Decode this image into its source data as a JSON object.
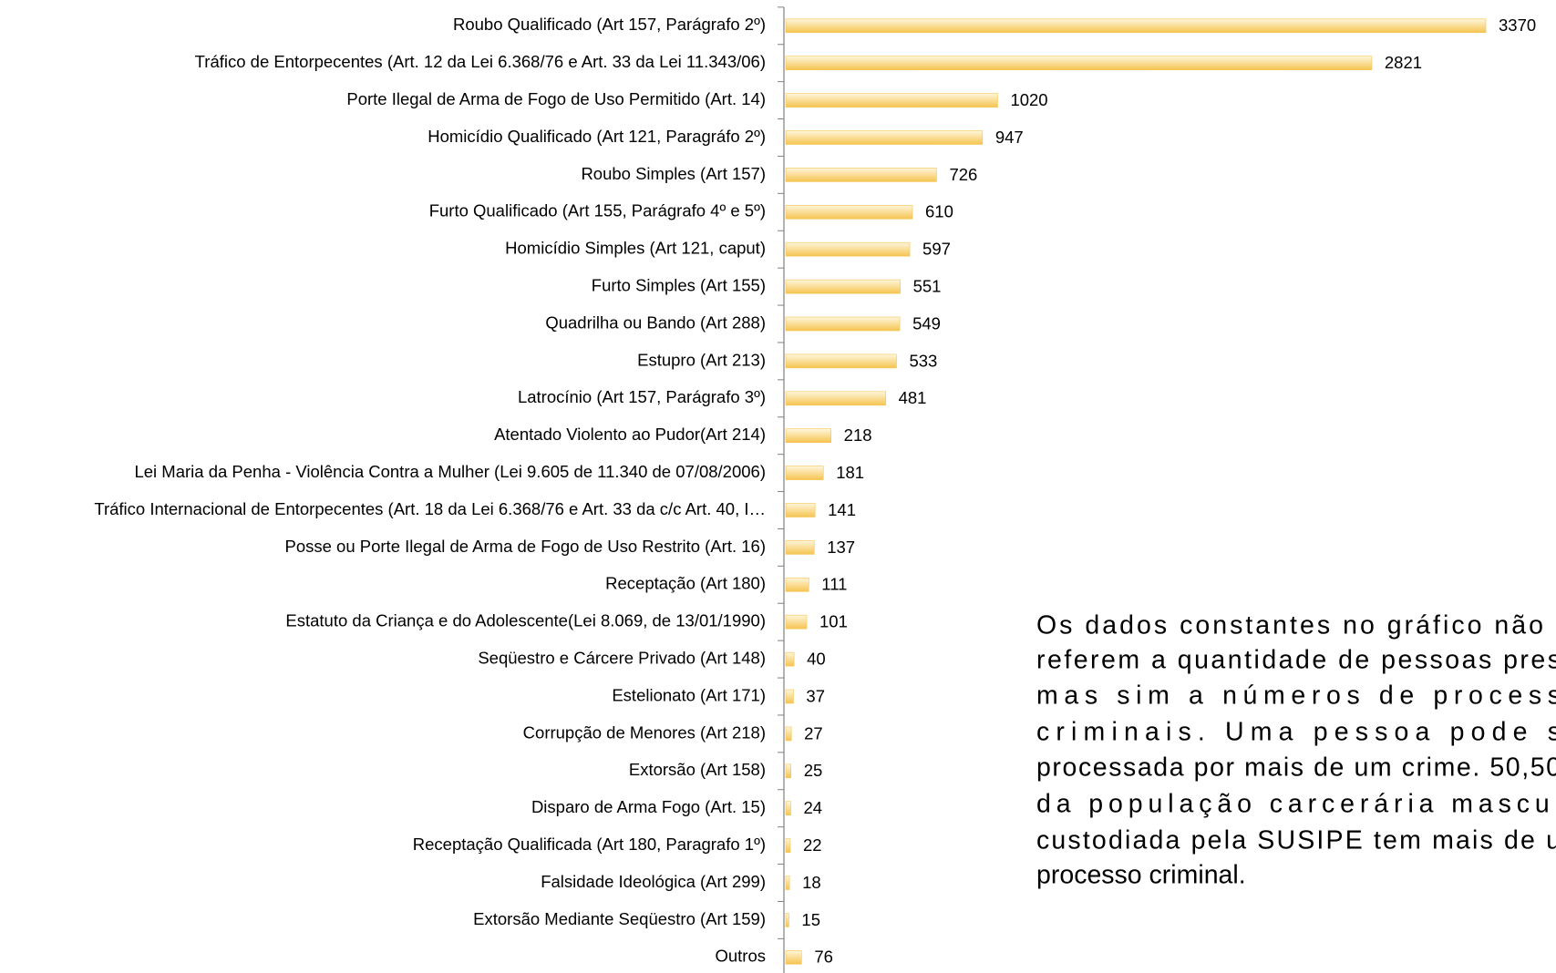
{
  "chart_data": {
    "type": "bar",
    "orientation": "horizontal",
    "categories": [
      "Roubo Qualificado (Art 157, Parágrafo 2º)",
      "Tráfico de Entorpecentes (Art. 12 da Lei 6.368/76 e Art. 33 da Lei 11.343/06)",
      "Porte Ilegal de Arma de Fogo de Uso Permitido (Art. 14)",
      "Homicídio Qualificado (Art 121, Paragráfo 2º)",
      "Roubo Simples (Art 157)",
      "Furto Qualificado (Art 155, Parágrafo 4º e 5º)",
      "Homicídio Simples (Art 121, caput)",
      "Furto Simples (Art 155)",
      "Quadrilha ou Bando (Art 288)",
      "Estupro (Art 213)",
      "Latrocínio (Art 157, Parágrafo 3º)",
      "Atentado Violento ao Pudor(Art 214)",
      "Lei Maria da Penha - Violência Contra a Mulher (Lei 9.605 de 11.340 de 07/08/2006)",
      "Tráfico Internacional de Entorpecentes (Art. 18 da Lei 6.368/76 e Art. 33 da c/c Art. 40, I…",
      "Posse ou Porte Ilegal de Arma de Fogo de Uso Restrito (Art. 16)",
      "Receptação (Art 180)",
      "Estatuto da Criança e do Adolescente(Lei 8.069, de 13/01/1990)",
      "Seqüestro e Cárcere Privado (Art 148)",
      "Estelionato (Art 171)",
      "Corrupção de Menores (Art 218)",
      "Extorsão (Art 158)",
      "Disparo de Arma Fogo (Art. 15)",
      "Receptação Qualificada (Art 180, Paragrafo 1º)",
      "Falsidade Ideológica (Art 299)",
      "Extorsão Mediante Seqüestro (Art 159)",
      "Outros"
    ],
    "values": [
      3370,
      2821,
      1020,
      947,
      726,
      610,
      597,
      551,
      549,
      533,
      481,
      218,
      181,
      141,
      137,
      111,
      101,
      40,
      37,
      27,
      25,
      24,
      22,
      18,
      15,
      76
    ],
    "color": "#f5c451"
  },
  "note_lines": [
    "Os dados constantes no gráfico não",
    "referem a quantidade de pessoas pres",
    "mas sim a números de process",
    "criminais. Uma pessoa pode s",
    "processada por mais de um crime. 50,50",
    "da população carcerária mascul",
    "custodiada pela SUSIPE tem mais de u",
    "processo criminal."
  ]
}
